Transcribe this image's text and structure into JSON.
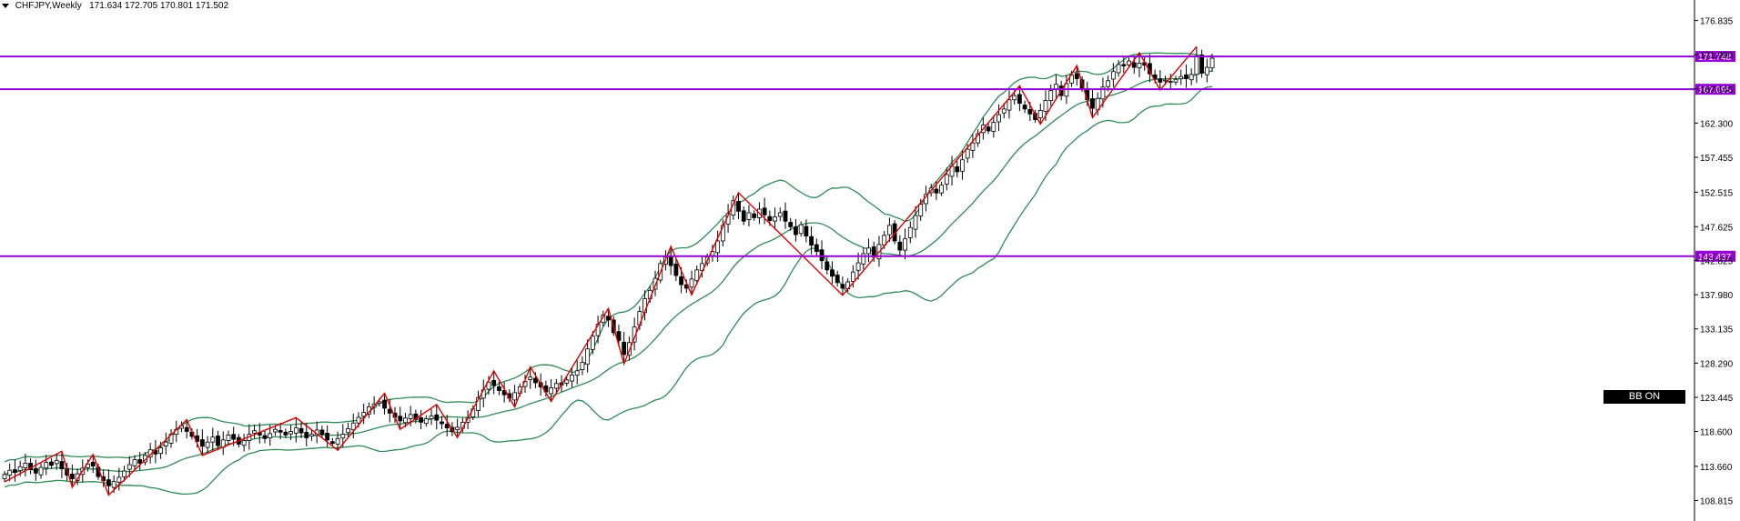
{
  "header": {
    "symbol": "CHFJPY,Weekly",
    "ohlc": "171.634 172.705 170.801 171.502"
  },
  "badge_label": "BB ON",
  "colors": {
    "bullish": "#ffffff",
    "bearish": "#000000",
    "bands": "#2e8b57",
    "zigzag": "#e00000",
    "levels": "#9400d3",
    "axis_text": "#000000"
  },
  "chart_data": {
    "type": "candlestick",
    "ylim": [
      107.2,
      178.2
    ],
    "y_ticks": [
      "176.835",
      "171.990",
      "167.145",
      "162.300",
      "157.455",
      "152.515",
      "147.625",
      "142.825",
      "137.980",
      "133.135",
      "128.290",
      "123.445",
      "118.600",
      "113.660",
      "108.815"
    ],
    "levels": [
      {
        "label": "171.748",
        "value": 171.748
      },
      {
        "label": "167.095",
        "value": 167.095
      },
      {
        "label": "143.437",
        "value": 143.437
      }
    ],
    "candles_close": [
      112.5,
      113.1,
      112.8,
      113.6,
      114.1,
      113.2,
      112.7,
      113.5,
      114.2,
      113.8,
      114.5,
      113.3,
      112.4,
      111.9,
      112.6,
      113.4,
      114.0,
      113.7,
      112.2,
      111.6,
      110.9,
      111.5,
      112.1,
      113.0,
      113.9,
      114.6,
      114.1,
      115.2,
      116.0,
      115.4,
      116.3,
      117.1,
      118.2,
      118.9,
      119.4,
      118.6,
      117.9,
      117.2,
      116.5,
      117.1,
      117.8,
      116.6,
      117.4,
      118.1,
      117.5,
      116.8,
      117.3,
      118.2,
      118.7,
      118.1,
      117.6,
      118.3,
      118.9,
      118.5,
      118.1,
      118.6,
      119.1,
      118.4,
      117.7,
      118.2,
      118.8,
      118.2,
      117.4,
      116.9,
      117.6,
      118.2,
      119.0,
      119.8,
      120.6,
      121.3,
      122.1,
      122.5,
      122.8,
      121.9,
      121.2,
      120.6,
      120.1,
      120.5,
      121.0,
      120.3,
      119.9,
      120.4,
      120.8,
      120.2,
      119.7,
      119.1,
      118.6,
      119.2,
      119.9,
      120.5,
      121.8,
      123.4,
      124.5,
      125.6,
      125.1,
      124.4,
      123.8,
      123.3,
      124.1,
      124.9,
      125.7,
      126.3,
      125.5,
      124.9,
      124.2,
      124.8,
      125.4,
      125.2,
      125.9,
      126.6,
      127.2,
      128.4,
      130.3,
      132.1,
      133.8,
      135.1,
      134.4,
      132.6,
      131.5,
      129.5,
      131.2,
      133.4,
      135.6,
      137.4,
      138.6,
      140.3,
      142.4,
      143.3,
      142.1,
      140.7,
      139.4,
      138.9,
      140.2,
      141.5,
      142.4,
      143.3,
      144.1,
      145.6,
      147.8,
      149.5,
      151.3,
      149.8,
      148.4,
      149.6,
      148.9,
      150.1,
      149.3,
      148.5,
      149.0,
      149.6,
      148.4,
      147.6,
      146.5,
      147.9,
      146.3,
      145.0,
      144.1,
      142.8,
      141.5,
      140.6,
      139.7,
      138.9,
      139.8,
      141.2,
      142.5,
      143.8,
      144.6,
      143.3,
      145.1,
      146.4,
      147.8,
      145.6,
      144.3,
      145.9,
      147.5,
      149.2,
      150.8,
      152.2,
      153.1,
      152.4,
      153.5,
      155.0,
      156.2,
      155.4,
      157.1,
      158.6,
      159.5,
      160.8,
      162.0,
      161.2,
      162.4,
      163.5,
      164.3,
      165.6,
      166.2,
      165.1,
      164.3,
      163.6,
      162.8,
      164.1,
      165.5,
      166.9,
      167.8,
      166.2,
      167.9,
      169.1,
      168.6,
      167.2,
      165.6,
      164.4,
      165.8,
      167.4,
      168.3,
      169.6,
      170.6,
      170.4,
      171.1,
      170.2,
      170.8,
      170.5,
      169.3,
      168.6,
      168.1,
      168.4,
      168.2,
      168.5,
      168.9,
      168.6,
      169.2,
      171.8,
      169.4,
      170.2,
      171.5
    ]
  }
}
